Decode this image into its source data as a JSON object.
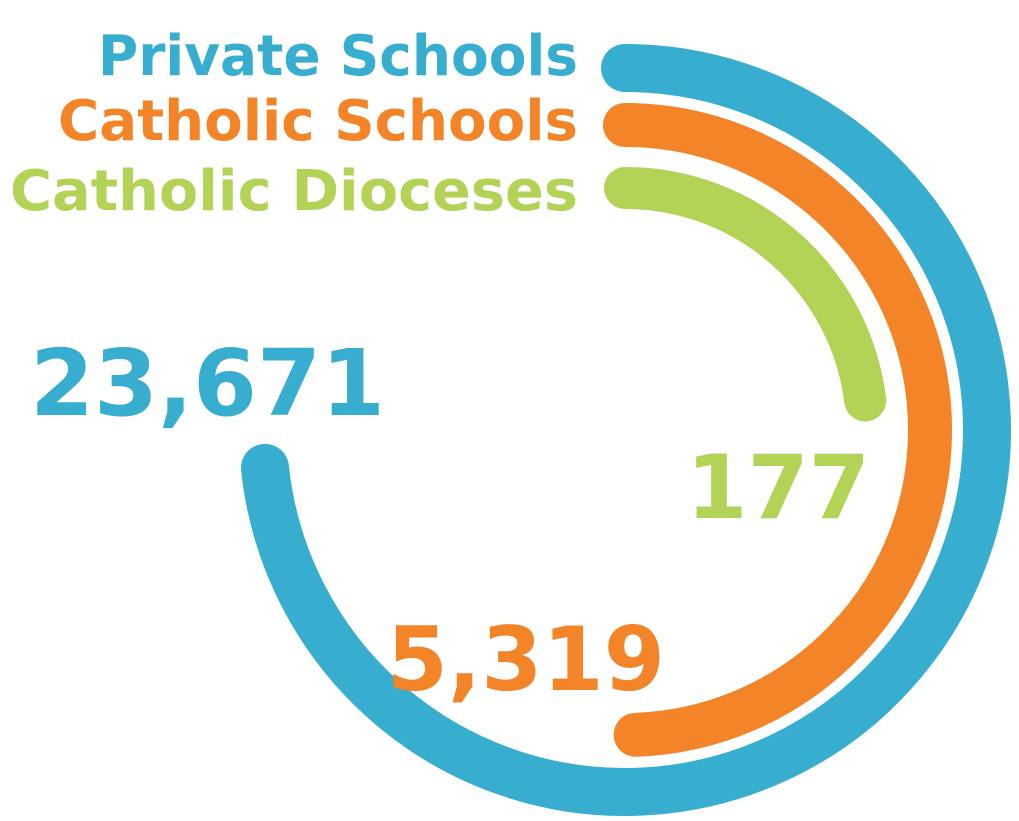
{
  "items": [
    {
      "label": "Private Schools",
      "value": "23,671",
      "color": "#37aecf"
    },
    {
      "label": "Catholic Schools",
      "value": "5,319",
      "color": "#f38428"
    },
    {
      "label": "Catholic Dioceses",
      "value": "177",
      "color": "#b2d355"
    }
  ]
}
